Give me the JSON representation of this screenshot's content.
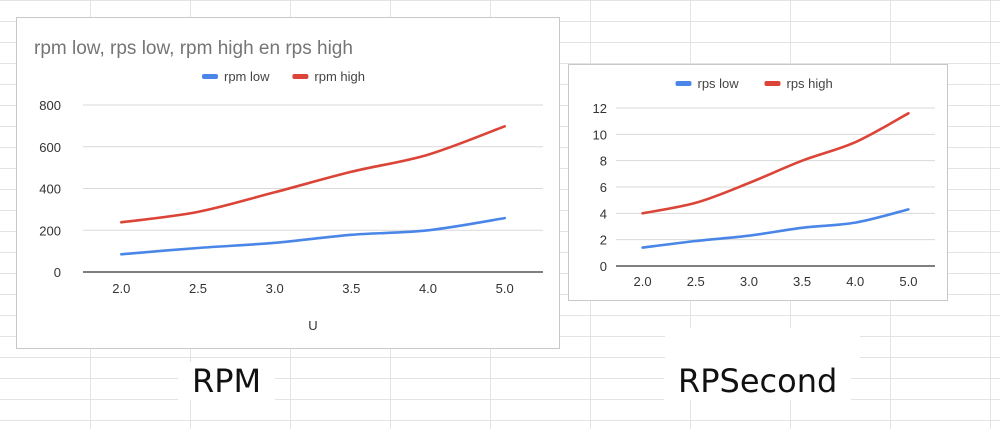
{
  "captions": {
    "left": "RPM",
    "right": "RPSecond"
  },
  "chart_data": [
    {
      "type": "line",
      "title": "rpm low, rps low, rpm high en rps high",
      "xlabel": "U",
      "ylabel": "",
      "x": [
        2.0,
        2.5,
        3.0,
        3.5,
        4.0,
        5.0
      ],
      "x_tick_labels": [
        "2.0",
        "2.5",
        "3.0",
        "3.5",
        "4.0",
        "5.0"
      ],
      "ylim": [
        0,
        800
      ],
      "y_ticks": [
        0,
        200,
        400,
        600,
        800
      ],
      "grid": true,
      "legend_position": "top",
      "series": [
        {
          "name": "rpm low",
          "color": "#4a86e8",
          "values": [
            85,
            115,
            140,
            178,
            200,
            258
          ]
        },
        {
          "name": "rpm high",
          "color": "#db4437",
          "values": [
            238,
            288,
            382,
            480,
            562,
            698
          ]
        }
      ]
    },
    {
      "type": "line",
      "title": "",
      "xlabel": "",
      "ylabel": "",
      "x": [
        2.0,
        2.5,
        3.0,
        3.5,
        4.0,
        5.0
      ],
      "x_tick_labels": [
        "2.0",
        "2.5",
        "3.0",
        "3.5",
        "4.0",
        "5.0"
      ],
      "ylim": [
        0,
        12
      ],
      "y_ticks": [
        0,
        2,
        4,
        6,
        8,
        10,
        12
      ],
      "grid": true,
      "legend_position": "top",
      "series": [
        {
          "name": "rps low",
          "color": "#4a86e8",
          "values": [
            1.4,
            1.9,
            2.3,
            2.9,
            3.3,
            4.3
          ]
        },
        {
          "name": "rps high",
          "color": "#db4437",
          "values": [
            4.0,
            4.8,
            6.3,
            8.0,
            9.4,
            11.6
          ]
        }
      ]
    }
  ]
}
